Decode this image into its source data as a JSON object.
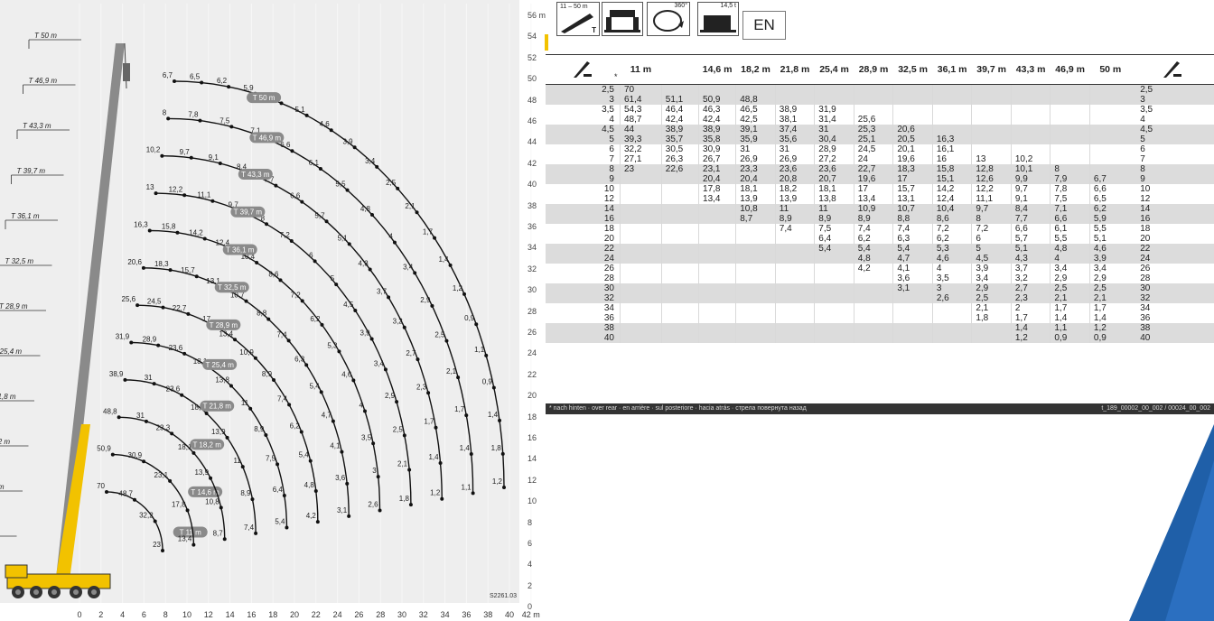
{
  "diagram": {
    "x_ticks": [
      "0",
      "2",
      "4",
      "6",
      "8",
      "10",
      "12",
      "14",
      "16",
      "18",
      "20",
      "22",
      "24",
      "26",
      "28",
      "30",
      "32",
      "34",
      "36",
      "38",
      "40",
      "42 m"
    ],
    "y_ticks": [
      "56 m",
      "54",
      "52",
      "50",
      "48",
      "46",
      "44",
      "42",
      "40",
      "38",
      "36",
      "34",
      "32",
      "30",
      "28",
      "26",
      "24",
      "22",
      "20",
      "18",
      "16",
      "14",
      "12",
      "10",
      "8",
      "6",
      "4",
      "2",
      "0"
    ],
    "drawing_id": "S2261.03",
    "telescopic_markers": [
      "T 50 m",
      "T 46,9 m",
      "T 43,3 m",
      "T 39,7 m",
      "T 36,1 m",
      "T 32,5 m",
      "T 28,9 m",
      "T 25,4 m",
      "T 21,8 m",
      "T 18,2 m",
      "T 14,6 m",
      "T 11 m"
    ],
    "curves": [
      {
        "label": "T 11 m",
        "values": [
          "70",
          "48,7",
          "32,2",
          "23"
        ]
      },
      {
        "label": "T 14,6 m",
        "values": [
          "50,9",
          "30,9",
          "23,1",
          "17,8",
          "13,4"
        ]
      },
      {
        "label": "T 18,2 m",
        "values": [
          "48,8",
          "31",
          "23,3",
          "18,1",
          "13,9",
          "10,8",
          "8,7"
        ]
      },
      {
        "label": "T 21,8 m",
        "values": [
          "38,9",
          "31",
          "23,6",
          "18,2",
          "13,9",
          "11",
          "8,9",
          "7,4"
        ]
      },
      {
        "label": "T 25,4 m",
        "values": [
          "31,9",
          "28,9",
          "23,6",
          "18,1",
          "13,8",
          "11",
          "8,9",
          "7,5",
          "6,4",
          "5,4"
        ]
      },
      {
        "label": "T 28,9 m",
        "values": [
          "25,6",
          "24,5",
          "22,7",
          "17",
          "13,4",
          "10,9",
          "8,9",
          "7,4",
          "6,2",
          "5,4",
          "4,8",
          "4,2"
        ]
      },
      {
        "label": "T 32,5 m",
        "values": [
          "20,6",
          "18,3",
          "15,7",
          "13,1",
          "10,7",
          "8,8",
          "7,4",
          "6,3",
          "5,4",
          "4,7",
          "4,1",
          "3,6",
          "3,1"
        ]
      },
      {
        "label": "T 36,1 m",
        "values": [
          "16,3",
          "15,8",
          "14,2",
          "12,4",
          "10,4",
          "8,6",
          "7,2",
          "6,2",
          "5,3",
          "4,6",
          "4",
          "3,5",
          "3",
          "2,6"
        ]
      },
      {
        "label": "T 39,7 m",
        "values": [
          "13",
          "12,2",
          "11,1",
          "9,7",
          "8",
          "7,2",
          "6",
          "5",
          "4,5",
          "3,9",
          "3,4",
          "2,9",
          "2,5",
          "2,1",
          "1,8"
        ]
      },
      {
        "label": "T 43,3 m",
        "values": [
          "10,2",
          "9,7",
          "9,1",
          "8,4",
          "7,7",
          "6,6",
          "5,7",
          "5,1",
          "4,3",
          "3,7",
          "3,2",
          "2,7",
          "2,3",
          "1,7",
          "1,4",
          "1,2"
        ]
      },
      {
        "label": "T 46,9 m",
        "values": [
          "8",
          "7,8",
          "7,5",
          "7,1",
          "6,6",
          "6,1",
          "5,5",
          "4,8",
          "4",
          "3,4",
          "2,9",
          "2,5",
          "2,1",
          "1,7",
          "1,4",
          "1,1"
        ]
      },
      {
        "label": "T 50 m",
        "values": [
          "6,7",
          "6,5",
          "6,2",
          "5,9",
          "5,5",
          "5,1",
          "4,6",
          "3,9",
          "3,4",
          "2,5",
          "2,1",
          "1,7",
          "1,4",
          "1,2",
          "0,9",
          "1,1",
          "0,9",
          "1,4",
          "1,8",
          "1,2"
        ]
      }
    ]
  },
  "header": {
    "icon_boom_range": "11 – 50 m",
    "icon_boom_mode": "T",
    "icon_rotation": "360°",
    "icon_counterweight": "14,5 t",
    "language": "EN"
  },
  "load_table": {
    "columns": [
      "",
      "11 m",
      "",
      "14,6 m",
      "18,2 m",
      "21,8 m",
      "25,4 m",
      "28,9 m",
      "32,5 m",
      "36,1 m",
      "39,7 m",
      "43,3 m",
      "46,9 m",
      "50 m",
      ""
    ],
    "star": "*",
    "rows": [
      {
        "r": "2,5",
        "v": [
          "70",
          "",
          "",
          "",
          "",
          "",
          "",
          "",
          "",
          "",
          "",
          "",
          ""
        ],
        "shade": true
      },
      {
        "r": "3",
        "v": [
          "61,4",
          "51,1",
          "50,9",
          "48,8",
          "",
          "",
          "",
          "",
          "",
          "",
          "",
          "",
          ""
        ],
        "shade": true
      },
      {
        "r": "3,5",
        "v": [
          "54,3",
          "46,4",
          "46,3",
          "46,5",
          "38,9",
          "31,9",
          "",
          "",
          "",
          "",
          "",
          "",
          ""
        ],
        "shade": false
      },
      {
        "r": "4",
        "v": [
          "48,7",
          "42,4",
          "42,4",
          "42,5",
          "38,1",
          "31,4",
          "25,6",
          "",
          "",
          "",
          "",
          "",
          ""
        ],
        "shade": false
      },
      {
        "r": "4,5",
        "v": [
          "44",
          "38,9",
          "38,9",
          "39,1",
          "37,4",
          "31",
          "25,3",
          "20,6",
          "",
          "",
          "",
          "",
          ""
        ],
        "shade": true
      },
      {
        "r": "5",
        "v": [
          "39,3",
          "35,7",
          "35,8",
          "35,9",
          "35,6",
          "30,4",
          "25,1",
          "20,5",
          "16,3",
          "",
          "",
          "",
          ""
        ],
        "shade": true
      },
      {
        "r": "6",
        "v": [
          "32,2",
          "30,5",
          "30,9",
          "31",
          "31",
          "28,9",
          "24,5",
          "20,1",
          "16,1",
          "",
          "",
          "",
          ""
        ],
        "shade": false
      },
      {
        "r": "7",
        "v": [
          "27,1",
          "26,3",
          "26,7",
          "26,9",
          "26,9",
          "27,2",
          "24",
          "19,6",
          "16",
          "13",
          "10,2",
          "",
          ""
        ],
        "shade": false
      },
      {
        "r": "8",
        "v": [
          "23",
          "22,6",
          "23,1",
          "23,3",
          "23,6",
          "23,6",
          "22,7",
          "18,3",
          "15,8",
          "12,8",
          "10,1",
          "8",
          ""
        ],
        "shade": true
      },
      {
        "r": "9",
        "v": [
          "",
          "",
          "20,4",
          "20,4",
          "20,8",
          "20,7",
          "19,6",
          "17",
          "15,1",
          "12,6",
          "9,9",
          "7,9",
          "6,7"
        ],
        "shade": true
      },
      {
        "r": "10",
        "v": [
          "",
          "",
          "17,8",
          "18,1",
          "18,2",
          "18,1",
          "17",
          "15,7",
          "14,2",
          "12,2",
          "9,7",
          "7,8",
          "6,6"
        ],
        "shade": false
      },
      {
        "r": "12",
        "v": [
          "",
          "",
          "13,4",
          "13,9",
          "13,9",
          "13,8",
          "13,4",
          "13,1",
          "12,4",
          "11,1",
          "9,1",
          "7,5",
          "6,5"
        ],
        "shade": false
      },
      {
        "r": "14",
        "v": [
          "",
          "",
          "",
          "10,8",
          "11",
          "11",
          "10,9",
          "10,7",
          "10,4",
          "9,7",
          "8,4",
          "7,1",
          "6,2"
        ],
        "shade": true
      },
      {
        "r": "16",
        "v": [
          "",
          "",
          "",
          "8,7",
          "8,9",
          "8,9",
          "8,9",
          "8,8",
          "8,6",
          "8",
          "7,7",
          "6,6",
          "5,9"
        ],
        "shade": true
      },
      {
        "r": "18",
        "v": [
          "",
          "",
          "",
          "",
          "7,4",
          "7,5",
          "7,4",
          "7,4",
          "7,2",
          "7,2",
          "6,6",
          "6,1",
          "5,5"
        ],
        "shade": false
      },
      {
        "r": "20",
        "v": [
          "",
          "",
          "",
          "",
          "",
          "6,4",
          "6,2",
          "6,3",
          "6,2",
          "6",
          "5,7",
          "5,5",
          "5,1"
        ],
        "shade": false
      },
      {
        "r": "22",
        "v": [
          "",
          "",
          "",
          "",
          "",
          "5,4",
          "5,4",
          "5,4",
          "5,3",
          "5",
          "5,1",
          "4,8",
          "4,6"
        ],
        "shade": true
      },
      {
        "r": "24",
        "v": [
          "",
          "",
          "",
          "",
          "",
          "",
          "4,8",
          "4,7",
          "4,6",
          "4,5",
          "4,3",
          "4",
          "3,9"
        ],
        "shade": true
      },
      {
        "r": "26",
        "v": [
          "",
          "",
          "",
          "",
          "",
          "",
          "4,2",
          "4,1",
          "4",
          "3,9",
          "3,7",
          "3,4",
          "3,4"
        ],
        "shade": false
      },
      {
        "r": "28",
        "v": [
          "",
          "",
          "",
          "",
          "",
          "",
          "",
          "3,6",
          "3,5",
          "3,4",
          "3,2",
          "2,9",
          "2,9"
        ],
        "shade": false
      },
      {
        "r": "30",
        "v": [
          "",
          "",
          "",
          "",
          "",
          "",
          "",
          "3,1",
          "3",
          "2,9",
          "2,7",
          "2,5",
          "2,5"
        ],
        "shade": true
      },
      {
        "r": "32",
        "v": [
          "",
          "",
          "",
          "",
          "",
          "",
          "",
          "",
          "2,6",
          "2,5",
          "2,3",
          "2,1",
          "2,1"
        ],
        "shade": true
      },
      {
        "r": "34",
        "v": [
          "",
          "",
          "",
          "",
          "",
          "",
          "",
          "",
          "",
          "2,1",
          "2",
          "1,7",
          "1,7"
        ],
        "shade": false
      },
      {
        "r": "36",
        "v": [
          "",
          "",
          "",
          "",
          "",
          "",
          "",
          "",
          "",
          "1,8",
          "1,7",
          "1,4",
          "1,4"
        ],
        "shade": false
      },
      {
        "r": "38",
        "v": [
          "",
          "",
          "",
          "",
          "",
          "",
          "",
          "",
          "",
          "",
          "1,4",
          "1,1",
          "1,2"
        ],
        "shade": true
      },
      {
        "r": "40",
        "v": [
          "",
          "",
          "",
          "",
          "",
          "",
          "",
          "",
          "",
          "",
          "1,2",
          "0,9",
          "0,9"
        ],
        "shade": true
      }
    ],
    "footnote": "* nach hinten · over rear · en arrière · sul posteriore · hacia atrás · стрела повернута назад",
    "table_id": "t_189_00002_00_002 / 00024_00_002"
  },
  "colors": {
    "crane_yellow": "#f2c200",
    "boom_gray": "#8a8a8a",
    "shade_row": "#dcdcdc",
    "accent_blue": "#1f5fa8",
    "marker_yellow": "#f2c200"
  }
}
